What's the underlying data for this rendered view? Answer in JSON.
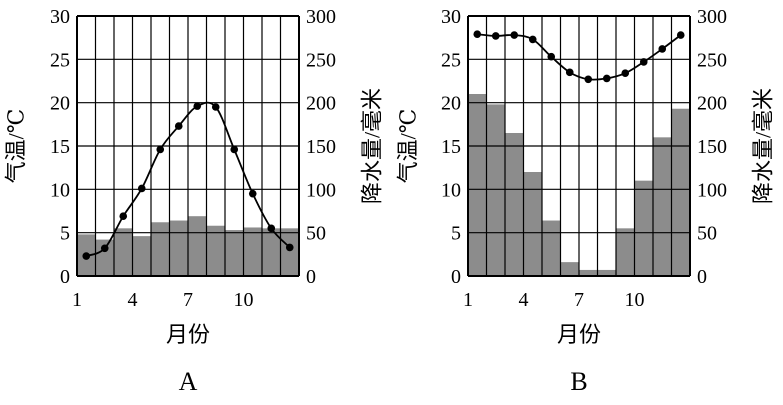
{
  "chart_data": [
    {
      "type": "bar",
      "panel_label": "A",
      "xlabel": "月份",
      "ylabel_left": "气温/℃",
      "ylabel_right": "降水量/毫米",
      "x": [
        1,
        2,
        3,
        4,
        5,
        6,
        7,
        8,
        9,
        10,
        11,
        12
      ],
      "x_tick_labels": [
        "1",
        "4",
        "7",
        "10"
      ],
      "y_left_ticks": [
        "0",
        "5",
        "10",
        "15",
        "20",
        "25",
        "30"
      ],
      "y_right_ticks": [
        "0",
        "50",
        "100",
        "150",
        "200",
        "250",
        "300"
      ],
      "ylim_left": [
        0,
        30
      ],
      "ylim_right": [
        0,
        300
      ],
      "grid": true,
      "series": [
        {
          "kind": "bar",
          "axis": "right",
          "color": "#8c8c8c",
          "values": [
            48,
            42,
            55,
            46,
            62,
            64,
            69,
            58,
            53,
            56,
            55,
            55
          ]
        },
        {
          "kind": "line",
          "axis": "left",
          "color": "#000000",
          "values": [
            2.3,
            3.2,
            6.9,
            10.1,
            14.6,
            17.3,
            19.6,
            19.5,
            14.6,
            9.5,
            5.5,
            3.3
          ]
        }
      ]
    },
    {
      "type": "bar",
      "panel_label": "B",
      "xlabel": "月份",
      "ylabel_left": "气温/℃",
      "ylabel_right": "降水量/毫米",
      "x": [
        1,
        2,
        3,
        4,
        5,
        6,
        7,
        8,
        9,
        10,
        11,
        12
      ],
      "x_tick_labels": [
        "1",
        "4",
        "7",
        "10"
      ],
      "y_left_ticks": [
        "0",
        "5",
        "10",
        "15",
        "20",
        "25",
        "30"
      ],
      "y_right_ticks": [
        "0",
        "50",
        "100",
        "150",
        "200",
        "250",
        "300"
      ],
      "ylim_left": [
        0,
        30
      ],
      "ylim_right": [
        0,
        300
      ],
      "grid": true,
      "series": [
        {
          "kind": "bar",
          "axis": "right",
          "color": "#8c8c8c",
          "values": [
            210,
            198,
            165,
            120,
            64,
            16,
            7,
            7,
            55,
            110,
            160,
            193
          ]
        },
        {
          "kind": "line",
          "axis": "left",
          "color": "#000000",
          "values": [
            27.9,
            27.7,
            27.8,
            27.3,
            25.3,
            23.5,
            22.7,
            22.8,
            23.4,
            24.7,
            26.2,
            27.8
          ]
        }
      ]
    }
  ]
}
